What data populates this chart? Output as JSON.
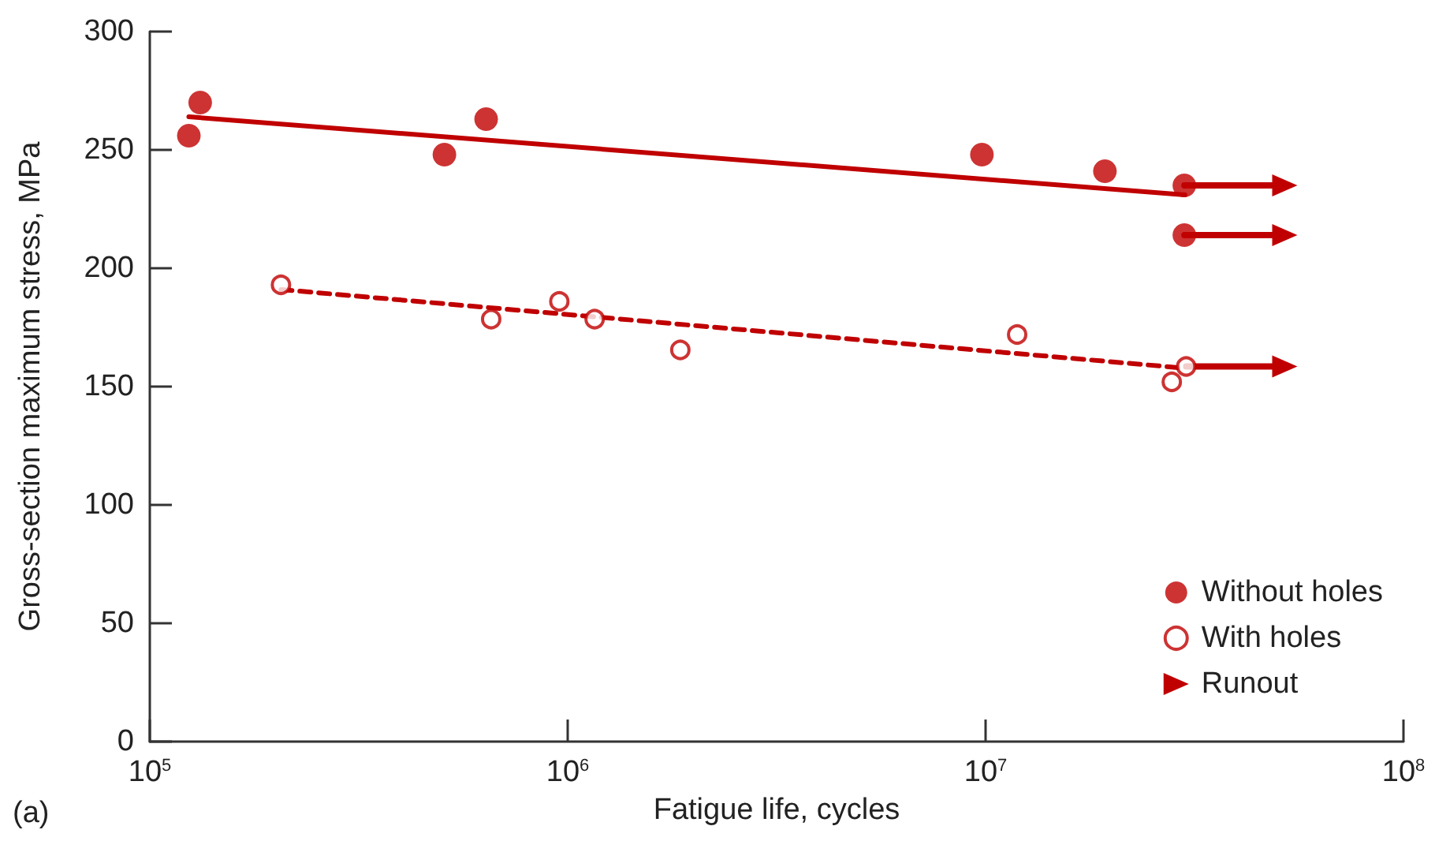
{
  "chart_data": {
    "type": "scatter",
    "xlabel": "Fatigue life, cycles",
    "ylabel": "Gross-section maximum stress, MPa",
    "annotations": [
      "(a)"
    ],
    "log": "x",
    "xlim": [
      100000,
      100000000
    ],
    "xticks": [
      {
        "value": 100000,
        "label": "10$^{5}$"
      },
      {
        "value": 1000000,
        "label": "10$^{6}$"
      },
      {
        "value": 10000000,
        "label": "10$^{7}$"
      },
      {
        "value": 100000000,
        "label": "10$^{8}$"
      }
    ],
    "ylim": [
      0,
      300
    ],
    "yticks": [
      0,
      50,
      100,
      150,
      200,
      250,
      300
    ],
    "grid": false,
    "legend": "bottom right",
    "series": [
      {
        "name": "Without holes",
        "color": "#c00000",
        "marker": "circle",
        "x": [
          124000,
          132000,
          507000,
          638000,
          9800000,
          19300000,
          29900000,
          29900000
        ],
        "values": [
          256,
          270,
          248,
          263,
          248,
          241,
          235,
          214
        ]
      },
      {
        "name": "With holes",
        "color": "#c00000",
        "marker": "open circle",
        "x": [
          206000,
          656000,
          955000,
          1160000,
          1860000,
          11900000,
          27900000,
          30200000
        ],
        "values": [
          193,
          178.5,
          186,
          178.5,
          165.5,
          172,
          152,
          158.5
        ]
      },
      {
        "type": "line",
        "color": "#c00000",
        "marker": "none",
        "line_style": "solid",
        "x": [
          124000,
          30000000
        ],
        "values": [
          264,
          231
        ]
      },
      {
        "type": "line",
        "color": "#c00000",
        "marker": "none",
        "line_style": "dashed",
        "x": [
          206000,
          29000000
        ],
        "values": [
          191,
          158
        ]
      },
      {
        "name": "Runout",
        "type": "line",
        "color": "#c00000",
        "marker": "triangle",
        "line_style": "solid",
        "x": [
          29900000,
          52000000
        ],
        "values": [
          235,
          235
        ]
      },
      {
        "type": "line",
        "color": "#c00000",
        "marker": "triangle",
        "line_style": "solid",
        "x": [
          29900000,
          52000000
        ],
        "values": [
          214,
          214
        ]
      },
      {
        "type": "line",
        "color": "#c00000",
        "marker": "triangle",
        "line_style": "solid",
        "x": [
          30200000,
          52000000
        ],
        "values": [
          158.5,
          158.5
        ]
      }
    ]
  }
}
